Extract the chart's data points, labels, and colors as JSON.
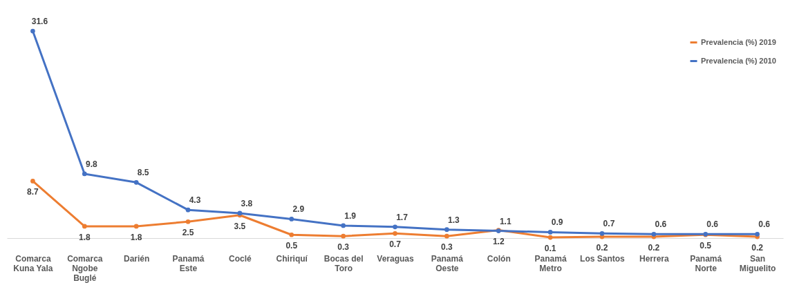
{
  "chart_data": {
    "type": "line",
    "categories": [
      "Comarca Kuna Yala",
      "Comarca Ngobe Buglé",
      "Darién",
      "Panamá Este",
      "Coclé",
      "Chiriquí",
      "Bocas del Toro",
      "Veraguas",
      "Panamá Oeste",
      "Colón",
      "Panamá Metro",
      "Los Santos",
      "Herrera",
      "Panamá Norte",
      "San Miguelito"
    ],
    "series": [
      {
        "name": "Prevalencia (%) 2019",
        "color": "#ed7d31",
        "values": [
          8.7,
          1.8,
          1.8,
          2.5,
          3.5,
          0.5,
          0.3,
          0.7,
          0.3,
          1.2,
          0.1,
          0.2,
          0.2,
          0.5,
          0.2
        ]
      },
      {
        "name": "Prevalencia (%) 2010",
        "color": "#4472c4",
        "values": [
          31.6,
          9.8,
          8.5,
          4.3,
          3.8,
          2.9,
          1.9,
          1.7,
          1.3,
          1.1,
          0.9,
          0.7,
          0.6,
          0.6,
          0.6
        ]
      }
    ],
    "data_labels": true,
    "legend": "top right",
    "marker": "circle",
    "line_style": "solid",
    "grid": false
  }
}
